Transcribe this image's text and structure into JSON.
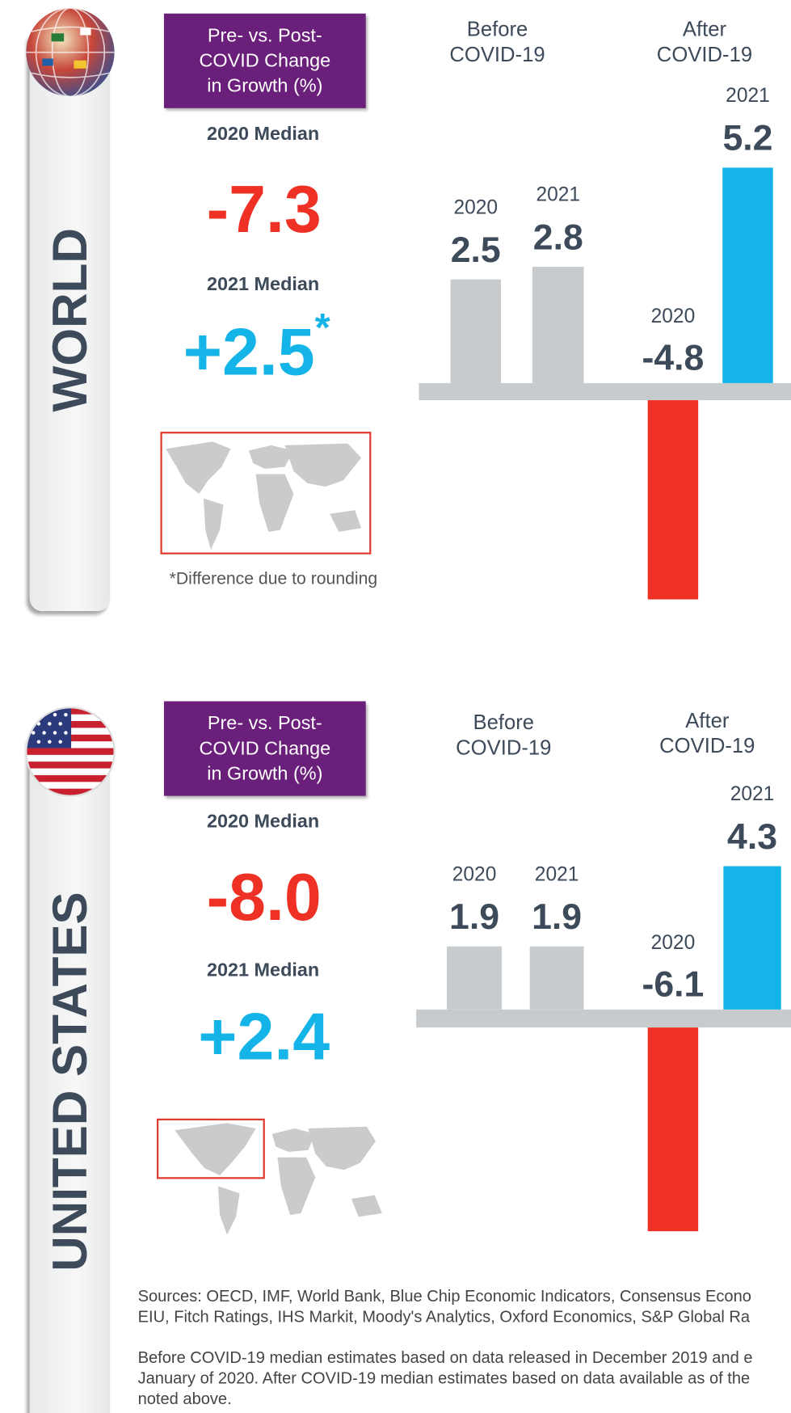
{
  "chart_data": [
    {
      "type": "bar",
      "region": "WORLD",
      "title": "Pre- vs. Post-COVID Change in Growth (%)",
      "groups": [
        "Before COVID-19",
        "After COVID-19"
      ],
      "categories": [
        "2020",
        "2021",
        "2020",
        "2021"
      ],
      "values": [
        2.5,
        2.8,
        -4.8,
        5.2
      ],
      "colors": [
        "#c8cbcd",
        "#c8cbcd",
        "#ee3124",
        "#14b4e8"
      ],
      "median_2020": {
        "label": "2020 Median",
        "value": -7.3,
        "value_label": "-7.3"
      },
      "median_2021": {
        "label": "2021 Median",
        "value": 2.5,
        "value_label": "+2.5",
        "note_marker": "*"
      },
      "footnote": "*Difference due to rounding"
    },
    {
      "type": "bar",
      "region": "UNITED STATES",
      "title": "Pre- vs. Post-COVID Change in Growth (%)",
      "groups": [
        "Before COVID-19",
        "After COVID-19"
      ],
      "categories": [
        "2020",
        "2021",
        "2020",
        "2021"
      ],
      "values": [
        1.9,
        1.9,
        -6.1,
        4.3
      ],
      "colors": [
        "#c8cbcd",
        "#c8cbcd",
        "#ee3124",
        "#14b4e8"
      ],
      "median_2020": {
        "label": "2020 Median",
        "value": -8.0,
        "value_label": "-8.0"
      },
      "median_2021": {
        "label": "2021 Median",
        "value": 2.4,
        "value_label": "+2.4"
      }
    }
  ],
  "footer": {
    "paragraphs": [
      [
        "Sources: OECD, IMF, World Bank, Blue Chip Economic Indicators, Consensus Econo",
        "EIU, Fitch Ratings, IHS Markit, Moody's Analytics, Oxford Economics, S&P Global Ra"
      ],
      [
        "Before COVID-19 median estimates based on data released in December 2019 and e",
        "January of 2020. After COVID-19 median estimates based on data available as of the",
        "noted above."
      ]
    ]
  }
}
